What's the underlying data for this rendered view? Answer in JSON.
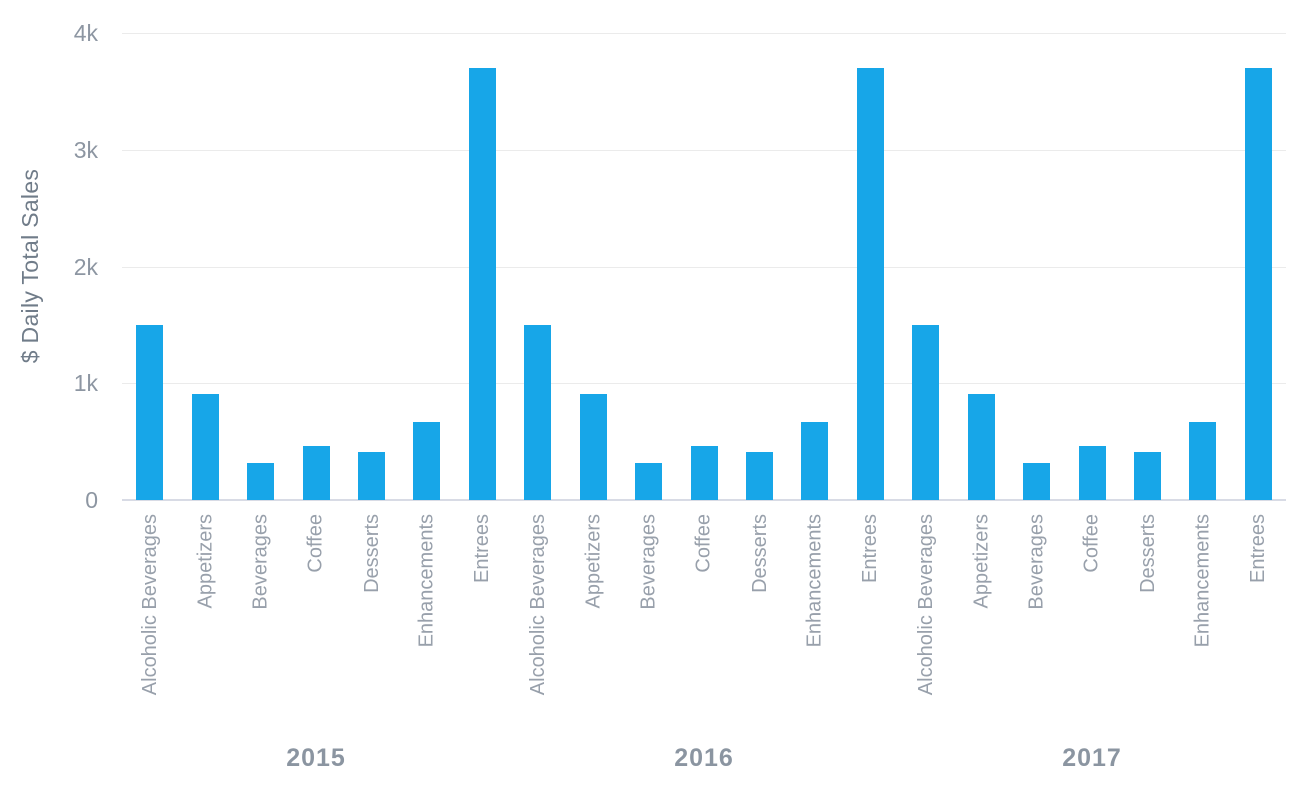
{
  "chart_data": {
    "type": "bar",
    "title": "",
    "xlabel": "",
    "ylabel": "$ Daily Total Sales",
    "ylim": [
      0,
      4000
    ],
    "grid": "horizontal",
    "legend_position": "none",
    "bar_color": "#17a6e8",
    "axis_text_color": "#8d96a2",
    "yticks": [
      {
        "value": 0,
        "label": "0"
      },
      {
        "value": 1000,
        "label": "1k"
      },
      {
        "value": 2000,
        "label": "2k"
      },
      {
        "value": 3000,
        "label": "3k"
      },
      {
        "value": 4000,
        "label": "4k"
      }
    ],
    "categories": [
      "Alcoholic Beverages",
      "Appetizers",
      "Beverages",
      "Coffee",
      "Desserts",
      "Enhancements",
      "Entrees"
    ],
    "groups": [
      {
        "year": "2015",
        "values": [
          1500,
          910,
          320,
          465,
          410,
          670,
          3700
        ]
      },
      {
        "year": "2016",
        "values": [
          1500,
          910,
          320,
          465,
          410,
          670,
          3700
        ]
      },
      {
        "year": "2017",
        "values": [
          1500,
          910,
          320,
          465,
          410,
          670,
          3700
        ]
      }
    ]
  }
}
